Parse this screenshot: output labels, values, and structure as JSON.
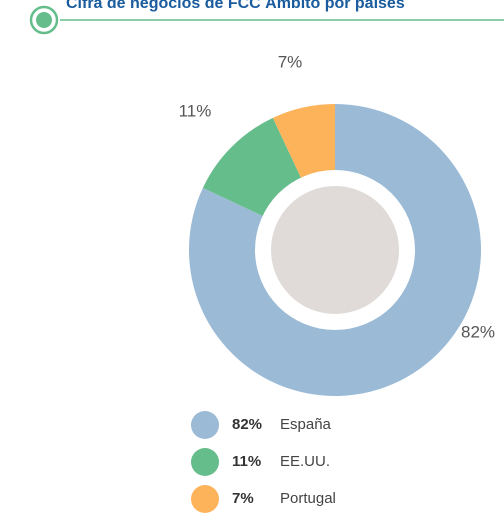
{
  "chart_data": {
    "type": "donut",
    "title": "Cifra de negocios de FCC Ámbito por países",
    "categories": [
      "España",
      "EE.UU.",
      "Portugal"
    ],
    "values": [
      82,
      11,
      7
    ],
    "value_labels": [
      "82%",
      "11%",
      "7%"
    ],
    "colors": [
      "#9bbad6",
      "#66bd8c",
      "#fdb35a"
    ]
  }
}
